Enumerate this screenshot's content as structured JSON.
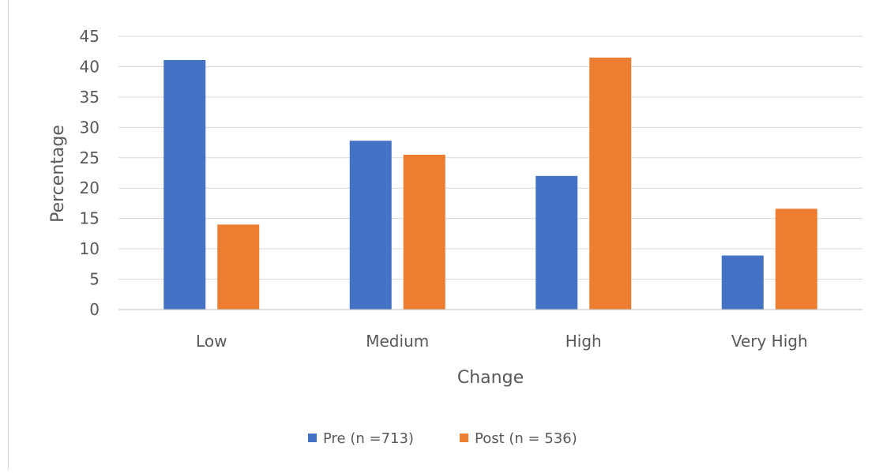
{
  "chart_data": {
    "type": "bar",
    "title": "",
    "xlabel": "Change",
    "ylabel": "Percentage",
    "categories": [
      "Low",
      "Medium",
      "High",
      "Very High"
    ],
    "series": [
      {
        "name": "Pre (n =713)",
        "color": "#4472c4",
        "values": [
          41.1,
          27.8,
          22.0,
          8.9
        ]
      },
      {
        "name": "Post (n = 536)",
        "color": "#ed7d31",
        "values": [
          14.0,
          25.5,
          41.5,
          16.6
        ]
      }
    ],
    "ylim": [
      0,
      45
    ],
    "yticks": [
      "0",
      "5",
      "10",
      "15",
      "20",
      "25",
      "30",
      "35",
      "40",
      "45"
    ],
    "grid": true,
    "legend_position": "bottom"
  }
}
